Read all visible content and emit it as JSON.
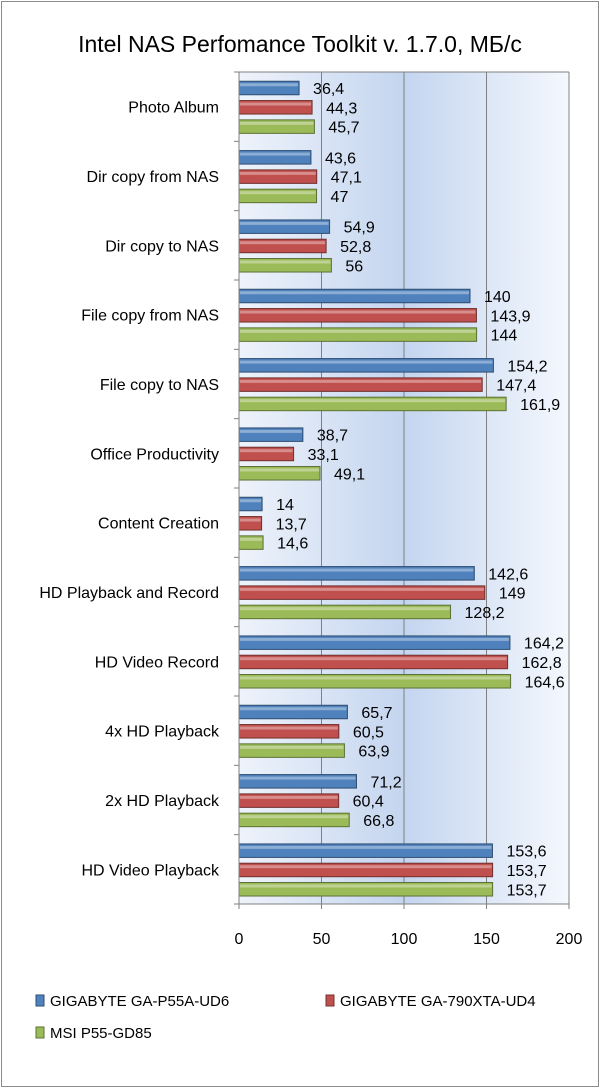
{
  "chart_data": {
    "type": "bar",
    "orientation": "horizontal",
    "title": "Intel NAS Perfomance Toolkit v. 1.7.0, МБ/с",
    "xlabel": "",
    "ylabel": "",
    "xlim": [
      0,
      200
    ],
    "xticks": [
      "0",
      "50",
      "100",
      "150",
      "200"
    ],
    "grid": "vertical",
    "legend_position": "bottom",
    "categories": [
      "Photo Album",
      "Dir copy from NAS",
      "Dir copy to NAS",
      "File copy from NAS",
      "File copy to NAS",
      "Office Productivity",
      "Content Creation",
      "HD Playback and Record",
      "HD Video Record",
      "4x HD Playback",
      "2x HD Playback",
      "HD Video Playback"
    ],
    "series": [
      {
        "name": "GIGABYTE GA-P55A-UD6",
        "color": "#4f81bd",
        "values": [
          36.4,
          43.6,
          54.9,
          140,
          154.2,
          38.7,
          14,
          142.6,
          164.2,
          65.7,
          71.2,
          153.6
        ],
        "labels": [
          "36,4",
          "43,6",
          "54,9",
          "140",
          "154,2",
          "38,7",
          "14",
          "142,6",
          "164,2",
          "65,7",
          "71,2",
          "153,6"
        ]
      },
      {
        "name": "GIGABYTE GA-790XTA-UD4",
        "color": "#c0504d",
        "values": [
          44.3,
          47.1,
          52.8,
          143.9,
          147.4,
          33.1,
          13.7,
          149,
          162.8,
          60.5,
          60.4,
          153.7
        ],
        "labels": [
          "44,3",
          "47,1",
          "52,8",
          "143,9",
          "147,4",
          "33,1",
          "13,7",
          "149",
          "162,8",
          "60,5",
          "60,4",
          "153,7"
        ]
      },
      {
        "name": "MSI P55-GD85",
        "color": "#9bbb59",
        "values": [
          45.7,
          47,
          56,
          144,
          161.9,
          49.1,
          14.6,
          128.2,
          164.6,
          63.9,
          66.8,
          153.7
        ],
        "labels": [
          "45,7",
          "47",
          "56",
          "144",
          "161,9",
          "49,1",
          "14,6",
          "128,2",
          "164,6",
          "63,9",
          "66,8",
          "153,7"
        ]
      }
    ]
  }
}
